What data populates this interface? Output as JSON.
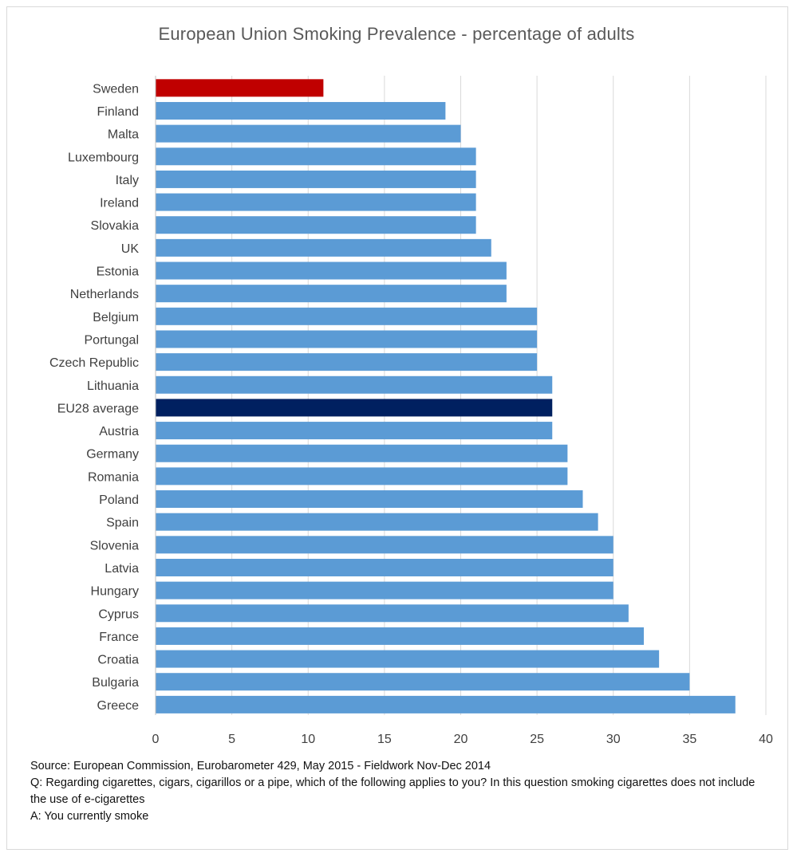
{
  "chart_data": {
    "type": "bar",
    "orientation": "horizontal",
    "title": "European Union Smoking Prevalence - percentage of adults",
    "xlabel": "",
    "ylabel": "",
    "xlim": [
      0,
      40
    ],
    "x_ticks": [
      0,
      5,
      10,
      15,
      20,
      25,
      30,
      35,
      40
    ],
    "grid": "vertical",
    "categories": [
      "Sweden",
      "Finland",
      "Malta",
      "Luxembourg",
      "Italy",
      "Ireland",
      "Slovakia",
      "UK",
      "Estonia",
      "Netherlands",
      "Belgium",
      "Portungal",
      "Czech Republic",
      "Lithuania",
      "EU28 average",
      "Austria",
      "Germany",
      "Romania",
      "Poland",
      "Spain",
      "Slovenia",
      "Latvia",
      "Hungary",
      "Cyprus",
      "France",
      "Croatia",
      "Bulgaria",
      "Greece"
    ],
    "values": [
      11,
      19,
      20,
      21,
      21,
      21,
      21,
      22,
      23,
      23,
      25,
      25,
      25,
      26,
      26,
      26,
      27,
      27,
      28,
      29,
      30,
      30,
      30,
      31,
      32,
      33,
      35,
      38
    ],
    "colors": {
      "default": "#5b9bd5",
      "highlight": "#c00000",
      "average": "#002060",
      "grid": "#d9d9d9",
      "axis": "#bfbfbf"
    },
    "highlighted": {
      "Sweden": "highlight",
      "EU28 average": "average"
    }
  },
  "notes": {
    "source": "Source: European Commission, Eurobarometer 429, May 2015 - Fieldwork Nov-Dec 2014",
    "question": "Q: Regarding cigarettes, cigars, cigarillos or a pipe, which of the following applies to you? In this question smoking cigarettes does not include the use of e-cigarettes",
    "answer": "A: You currently smoke"
  }
}
